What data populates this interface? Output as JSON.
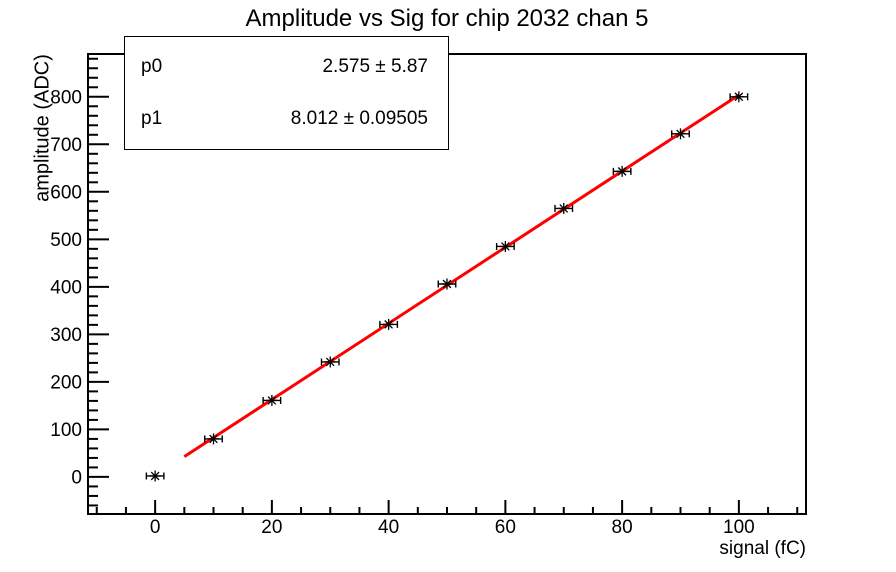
{
  "title": "Amplitude vs Sig for chip 2032 chan 5",
  "stats_box": {
    "rows": [
      {
        "param": "p0",
        "value": "2.575 ± 5.87"
      },
      {
        "param": "p1",
        "value": "8.012 ± 0.09505"
      }
    ]
  },
  "chart_data": {
    "type": "scatter",
    "title": "Amplitude vs Sig for chip 2032 chan 5",
    "xlabel": "signal (fC)",
    "ylabel": "amplitude (ADC)",
    "xlim": [
      -11.5,
      111.5
    ],
    "ylim": [
      -78,
      890
    ],
    "xticks": [
      0,
      20,
      40,
      60,
      80,
      100
    ],
    "yticks": [
      0,
      100,
      200,
      300,
      400,
      500,
      600,
      700,
      800
    ],
    "x_minor_step": 5,
    "y_minor_step": 20,
    "grid": false,
    "legend": "none",
    "points": {
      "x": [
        0,
        10,
        20,
        30,
        40,
        50,
        60,
        70,
        80,
        90,
        100
      ],
      "y": [
        2,
        80,
        161,
        242,
        321,
        406,
        485,
        565,
        643,
        722,
        800
      ],
      "xerr": 1.5
    },
    "fit": {
      "model": "pol1",
      "p0": 2.575,
      "p0_err": 5.87,
      "p1": 8.012,
      "p1_err": 0.09505,
      "range": [
        5,
        100
      ],
      "color": "#ff0000"
    },
    "colors": {
      "marker": "#000000",
      "fit_line": "#ff0000",
      "frame": "#000000",
      "background": "#ffffff",
      "text": "#000000"
    },
    "marker_style": "asterisk-with-xerr"
  }
}
